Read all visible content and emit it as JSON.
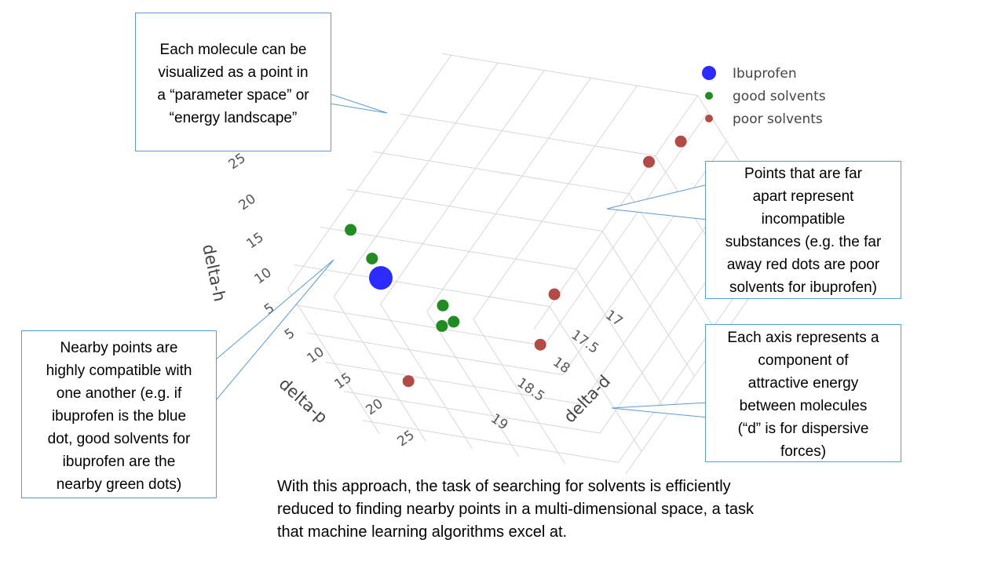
{
  "chart_data": {
    "type": "scatter",
    "series": [
      {
        "name": "Ibuprofen",
        "color": "#2b2bff",
        "points": [
          {
            "d": 17.6,
            "p": 5.2,
            "h": 7.0
          }
        ]
      },
      {
        "name": "good solvents",
        "color": "#228b22",
        "points": [
          {
            "d": 17.0,
            "p": 5.0,
            "h": 12.0
          },
          {
            "d": 17.4,
            "p": 5.0,
            "h": 9.0
          },
          {
            "d": 18.4,
            "p": 5.0,
            "h": 4.8
          },
          {
            "d": 18.5,
            "p": 5.4,
            "h": 2.6
          },
          {
            "d": 18.6,
            "p": 5.2,
            "h": 3.2
          }
        ]
      },
      {
        "name": "poor solvents",
        "color": "#b44a46",
        "points": [
          {
            "d": 19.4,
            "p": 7.5,
            "h": 30.5
          },
          {
            "d": 19.2,
            "p": 7.9,
            "h": 27.7
          },
          {
            "d": 19.1,
            "p": 9.0,
            "h": 10.8
          },
          {
            "d": 19.2,
            "p": 10.4,
            "h": 5.4
          },
          {
            "d": 17.0,
            "p": 26.0,
            "h": 8.2
          }
        ]
      }
    ],
    "axes": {
      "x": {
        "title": "delta-d",
        "ticks": [
          "17",
          "17.5",
          "18",
          "18.5",
          "19"
        ]
      },
      "y": {
        "title": "delta-p",
        "ticks": [
          "5",
          "10",
          "15",
          "20",
          "25"
        ]
      },
      "z": {
        "title": "delta-h",
        "ticks": [
          "5",
          "10",
          "15",
          "20",
          "25"
        ]
      }
    },
    "legend": {
      "position": "top-right",
      "entries": [
        "Ibuprofen",
        "good solvents",
        "poor solvents"
      ]
    },
    "grid": true
  },
  "callouts": {
    "molecule": "Each molecule can be\nvisualized as a point in\na “parameter space” or\n“energy landscape”",
    "far": "Points that are far\napart represent\nincompatible\nsubstances (e.g. the far\naway red dots are poor\nsolvents for ibuprofen)",
    "near": "Nearby points are\nhighly compatible with\none another (e.g. if\nibuprofen is the blue\ndot, good solvents for\nibuprofen are the\nnearby green dots)",
    "axis": "Each axis represents a\ncomponent of\nattractive energy\nbetween molecules\n(“d” is for dispersive\nforces)"
  },
  "summary": "With this approach, the task of searching for solvents is efficiently\nreduced to finding nearby points in a multi-dimensional space, a task\nthat machine learning algorithms excel at."
}
